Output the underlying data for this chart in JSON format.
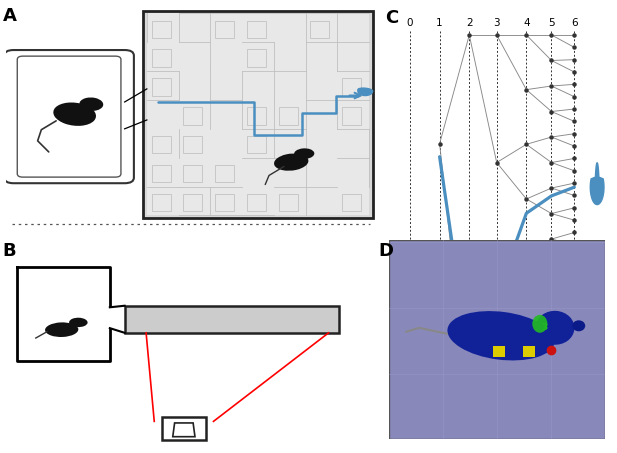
{
  "panel_label_fontsize": 13,
  "panel_label_weight": "bold",
  "background_color": "#ffffff",
  "tree_level_labels": [
    "0",
    "1",
    "2",
    "3",
    "4",
    "5",
    "6"
  ],
  "blue_color": "#4a8fc0",
  "drop_color": "#4a8fc0",
  "gray_color": "#888888",
  "dark_color": "#111111",
  "maze_bg": "#e0e0e0",
  "maze_edge": "#222222",
  "maze_wall": "#aaaaaa",
  "blue_path": "#4a8fc0",
  "red_line": "#cc2222",
  "track_gray": "#cccccc",
  "purple_bg": "#8888bb",
  "mouse_blue_d": "#1a3fcc",
  "green_marker": "#22bb22",
  "yellow_marker": "#ddcc00",
  "red_marker": "#cc1111",
  "dashed_sep": "#444444",
  "tree_node_color": "#333333",
  "tree_edge_color": "#888888"
}
